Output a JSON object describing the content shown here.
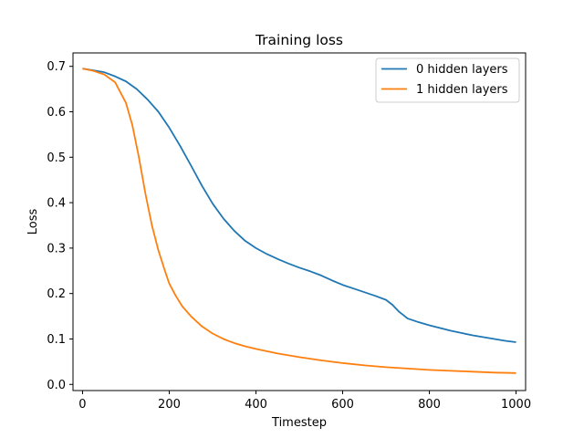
{
  "chart_data": {
    "type": "line",
    "title": "Training loss",
    "xlabel": "Timestep",
    "ylabel": "Loss",
    "xlim": [
      -22,
      1022
    ],
    "ylim": [
      -0.0135,
      0.7295
    ],
    "xticks": [
      0,
      200,
      400,
      600,
      800,
      1000
    ],
    "yticks": [
      0.0,
      0.1,
      0.2,
      0.3,
      0.4,
      0.5,
      0.6,
      0.7
    ],
    "xtick_labels": [
      "0",
      "200",
      "400",
      "600",
      "800",
      "1000"
    ],
    "ytick_labels": [
      "0.0",
      "0.1",
      "0.2",
      "0.3",
      "0.4",
      "0.5",
      "0.6",
      "0.7"
    ],
    "legend_position": "top-right",
    "grid": false,
    "series": [
      {
        "name": "0 hidden layers",
        "color": "#1f77b4",
        "x": [
          0,
          25,
          50,
          75,
          100,
          125,
          150,
          175,
          200,
          225,
          250,
          275,
          300,
          325,
          350,
          375,
          400,
          425,
          450,
          475,
          500,
          525,
          550,
          575,
          600,
          625,
          650,
          675,
          700,
          715,
          730,
          750,
          775,
          800,
          825,
          850,
          875,
          900,
          925,
          950,
          975,
          1000
        ],
        "y": [
          0.695,
          0.691,
          0.687,
          0.678,
          0.667,
          0.65,
          0.627,
          0.6,
          0.565,
          0.525,
          0.482,
          0.438,
          0.398,
          0.365,
          0.338,
          0.316,
          0.3,
          0.287,
          0.276,
          0.266,
          0.257,
          0.249,
          0.24,
          0.229,
          0.219,
          0.211,
          0.203,
          0.195,
          0.186,
          0.175,
          0.16,
          0.145,
          0.137,
          0.13,
          0.124,
          0.118,
          0.113,
          0.108,
          0.104,
          0.1,
          0.096,
          0.093
        ]
      },
      {
        "name": "1 hidden layers",
        "color": "#ff7f0e",
        "x": [
          0,
          25,
          50,
          75,
          100,
          115,
          130,
          145,
          160,
          175,
          190,
          200,
          215,
          230,
          250,
          275,
          300,
          325,
          350,
          375,
          400,
          450,
          500,
          550,
          600,
          650,
          700,
          750,
          800,
          850,
          900,
          950,
          1000
        ],
        "y": [
          0.695,
          0.69,
          0.682,
          0.665,
          0.62,
          0.57,
          0.5,
          0.42,
          0.35,
          0.295,
          0.25,
          0.222,
          0.195,
          0.172,
          0.15,
          0.128,
          0.112,
          0.1,
          0.091,
          0.084,
          0.078,
          0.068,
          0.06,
          0.053,
          0.047,
          0.042,
          0.038,
          0.035,
          0.032,
          0.03,
          0.028,
          0.026,
          0.025
        ]
      }
    ]
  }
}
